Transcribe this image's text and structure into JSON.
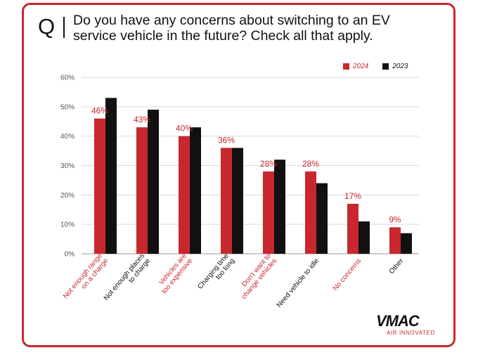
{
  "header": {
    "q_letter": "Q",
    "title": "Do you have any concerns about switching to an EV service vehicle in the future? Check all that apply."
  },
  "legend": {
    "items": [
      {
        "label": "2024",
        "color": "#c8282d"
      },
      {
        "label": "2023",
        "color": "#111111"
      }
    ]
  },
  "logo": {
    "name": "VMAC",
    "tagline": "AIR INNOVATED"
  },
  "chart_data": {
    "type": "bar",
    "categories": [
      "Not enough range on a charge",
      "Not enough places to charge",
      "Vehicles are too expensive",
      "Charging time too long",
      "Don't want to change vehicles",
      "Need vehicle to idle",
      "No concerns",
      "Other"
    ],
    "category_label_colors": [
      "#c8282d",
      "#111111",
      "#c8282d",
      "#111111",
      "#c8282d",
      "#111111",
      "#c8282d",
      "#111111"
    ],
    "series": [
      {
        "name": "2024",
        "color": "#c8282d",
        "values": [
          46,
          43,
          40,
          36,
          28,
          28,
          17,
          9
        ],
        "labels": [
          "46%",
          "43%",
          "40%",
          "36%",
          "28%",
          "28%",
          "17%",
          "9%"
        ]
      },
      {
        "name": "2023",
        "color": "#111111",
        "values": [
          53,
          49,
          43,
          36,
          32,
          24,
          11,
          7
        ]
      }
    ],
    "yticks": [
      "0%",
      "10%",
      "20%",
      "30%",
      "40%",
      "50%",
      "60%"
    ],
    "ylim": [
      0,
      60
    ],
    "grid": true,
    "legend_position": "top-right"
  }
}
